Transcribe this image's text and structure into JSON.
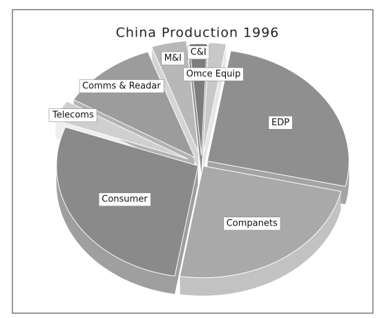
{
  "chart_data": {
    "type": "pie",
    "title": "China Production 1996",
    "categories": [
      "Omce Equip",
      "EDP",
      "Companets",
      "Consumer",
      "Telecoms",
      "Comms & Readar",
      "M&I",
      "C&I"
    ],
    "values": [
      2,
      26,
      24,
      28,
      3,
      11,
      4,
      2
    ],
    "colors": [
      "#c8c8c8",
      "#8f8f8f",
      "#a9a9a9",
      "#8a8a8a",
      "#cfcfcf",
      "#9c9c9c",
      "#b8b8b8",
      "#7d7d7d"
    ]
  }
}
